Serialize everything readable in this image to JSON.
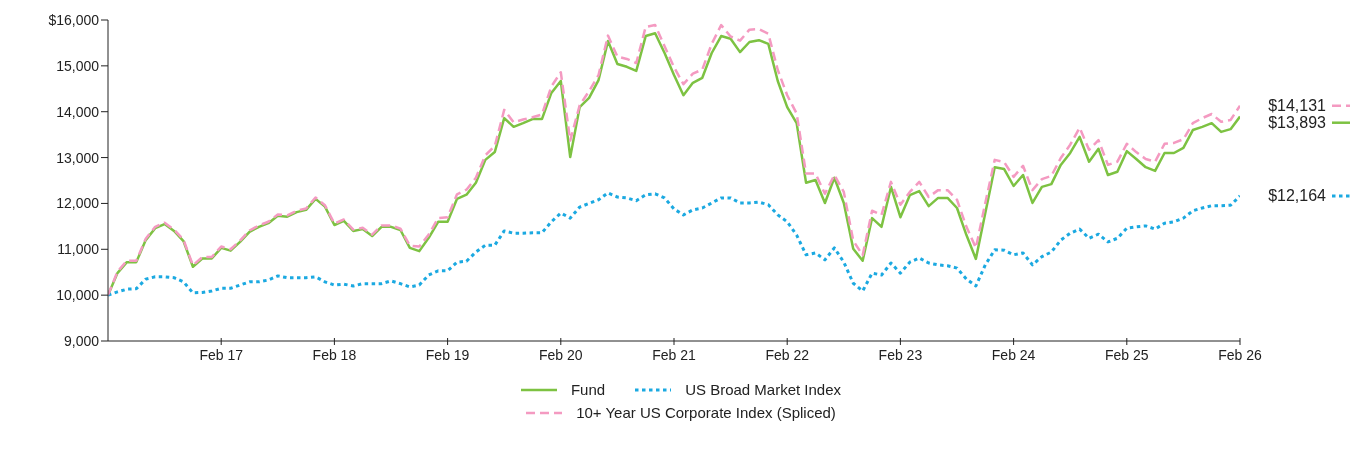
{
  "chart_data": {
    "type": "line",
    "x": [
      "2016-02",
      "2016-03",
      "2016-04",
      "2016-05",
      "2016-06",
      "2016-07",
      "2016-08",
      "2016-09",
      "2016-10",
      "2016-11",
      "2016-12",
      "2017-01",
      "2017-02",
      "2017-03",
      "2017-04",
      "2017-05",
      "2017-06",
      "2017-07",
      "2017-08",
      "2017-09",
      "2017-10",
      "2017-11",
      "2017-12",
      "2018-01",
      "2018-02",
      "2018-03",
      "2018-04",
      "2018-05",
      "2018-06",
      "2018-07",
      "2018-08",
      "2018-09",
      "2018-10",
      "2018-11",
      "2018-12",
      "2019-01",
      "2019-02",
      "2019-03",
      "2019-04",
      "2019-05",
      "2019-06",
      "2019-07",
      "2019-08",
      "2019-09",
      "2019-10",
      "2019-11",
      "2019-12",
      "2020-01",
      "2020-02",
      "2020-03",
      "2020-04",
      "2020-05",
      "2020-06",
      "2020-07",
      "2020-08",
      "2020-09",
      "2020-10",
      "2020-11",
      "2020-12",
      "2021-01",
      "2021-02",
      "2021-03",
      "2021-04",
      "2021-05",
      "2021-06",
      "2021-07",
      "2021-08",
      "2021-09",
      "2021-10",
      "2021-11",
      "2021-12",
      "2022-01",
      "2022-02",
      "2022-03",
      "2022-04",
      "2022-05",
      "2022-06",
      "2022-07",
      "2022-08",
      "2022-09",
      "2022-10",
      "2022-11",
      "2022-12",
      "2023-01",
      "2023-02",
      "2023-03",
      "2023-04",
      "2023-05",
      "2023-06",
      "2023-07",
      "2023-08",
      "2023-09",
      "2023-10",
      "2023-11",
      "2023-12",
      "2024-01",
      "2024-02",
      "2024-03",
      "2024-04",
      "2024-05",
      "2024-06",
      "2024-07",
      "2024-08",
      "2024-09",
      "2024-10",
      "2024-11",
      "2024-12",
      "2025-01",
      "2025-02",
      "2025-03",
      "2025-04",
      "2025-05",
      "2025-06",
      "2025-07",
      "2025-08",
      "2025-09",
      "2025-10",
      "2025-11",
      "2025-12",
      "2026-01",
      "2026-02"
    ],
    "series": [
      {
        "name": "Fund",
        "color": "#7dc242",
        "line_style": "solid",
        "value_labels": [
          null,
          null,
          null,
          null,
          null,
          null,
          null,
          null,
          null,
          null,
          null,
          null,
          null,
          null,
          null,
          null,
          null,
          null,
          null,
          null,
          null,
          null,
          null,
          null,
          null,
          null,
          null,
          null,
          null,
          null,
          null,
          null,
          null,
          null,
          null,
          null,
          null,
          null,
          null,
          null,
          null,
          null,
          null,
          null,
          null,
          null,
          null,
          null,
          null,
          null,
          null,
          null,
          null,
          null,
          null,
          null,
          null,
          null,
          null,
          null,
          null,
          null,
          null,
          null,
          null,
          null,
          null,
          null,
          null,
          null,
          null,
          null,
          null,
          null,
          null,
          null,
          null,
          null,
          null,
          null,
          null,
          null,
          null,
          null,
          null,
          null,
          null,
          null,
          null,
          null,
          null,
          null,
          null,
          null,
          null,
          null,
          null,
          null,
          null,
          null,
          null,
          null,
          null,
          null,
          null,
          null,
          null,
          null,
          null,
          null,
          null,
          null,
          null,
          null,
          null,
          null,
          null,
          null,
          null,
          null,
          "$13,893"
        ],
        "values": [
          10000,
          10480,
          10720,
          10720,
          11200,
          11460,
          11550,
          11400,
          11180,
          10620,
          10800,
          10800,
          11030,
          10970,
          11160,
          11380,
          11490,
          11570,
          11730,
          11710,
          11810,
          11860,
          12100,
          11930,
          11530,
          11620,
          11400,
          11440,
          11290,
          11490,
          11490,
          11420,
          11030,
          10960,
          11250,
          11600,
          11600,
          12100,
          12190,
          12450,
          12950,
          13120,
          13860,
          13670,
          13750,
          13840,
          13840,
          14410,
          14670,
          13010,
          14100,
          14300,
          14690,
          15540,
          15040,
          14980,
          14890,
          15650,
          15710,
          15280,
          14800,
          14360,
          14630,
          14740,
          15280,
          15650,
          15590,
          15300,
          15520,
          15560,
          15480,
          14670,
          14100,
          13750,
          12450,
          12510,
          12010,
          12560,
          12010,
          11010,
          10750,
          11680,
          11490,
          12360,
          11700,
          12180,
          12270,
          11940,
          12120,
          12120,
          11900,
          11310,
          10790,
          11790,
          12790,
          12750,
          12380,
          12620,
          12010,
          12360,
          12420,
          12840,
          13100,
          13450,
          12910,
          13190,
          12620,
          12690,
          13140,
          12970,
          12790,
          12710,
          13100,
          13100,
          13210,
          13600,
          13670,
          13750,
          13560,
          13620,
          13893
        ]
      },
      {
        "name": "US Broad Market Index",
        "color": "#1ba9e1",
        "line_style": "dotted",
        "value_labels": [
          null,
          null,
          null,
          null,
          null,
          null,
          null,
          null,
          null,
          null,
          null,
          null,
          null,
          null,
          null,
          null,
          null,
          null,
          null,
          null,
          null,
          null,
          null,
          null,
          null,
          null,
          null,
          null,
          null,
          null,
          null,
          null,
          null,
          null,
          null,
          null,
          null,
          null,
          null,
          null,
          null,
          null,
          null,
          null,
          null,
          null,
          null,
          null,
          null,
          null,
          null,
          null,
          null,
          null,
          null,
          null,
          null,
          null,
          null,
          null,
          null,
          null,
          null,
          null,
          null,
          null,
          null,
          null,
          null,
          null,
          null,
          null,
          null,
          null,
          null,
          null,
          null,
          null,
          null,
          null,
          null,
          null,
          null,
          null,
          null,
          null,
          null,
          null,
          null,
          null,
          null,
          null,
          null,
          null,
          null,
          null,
          null,
          null,
          null,
          null,
          null,
          null,
          null,
          null,
          null,
          null,
          null,
          null,
          null,
          null,
          null,
          null,
          null,
          null,
          null,
          null,
          null,
          null,
          null,
          null,
          "$12,164"
        ],
        "values": [
          10000,
          10070,
          10130,
          10140,
          10350,
          10400,
          10400,
          10380,
          10290,
          10050,
          10060,
          10090,
          10150,
          10150,
          10220,
          10290,
          10290,
          10330,
          10420,
          10380,
          10380,
          10380,
          10400,
          10290,
          10220,
          10240,
          10200,
          10250,
          10250,
          10250,
          10310,
          10250,
          10180,
          10220,
          10440,
          10530,
          10530,
          10720,
          10740,
          10940,
          11090,
          11090,
          11400,
          11350,
          11350,
          11360,
          11360,
          11600,
          11790,
          11680,
          11920,
          12000,
          12080,
          12230,
          12140,
          12120,
          12060,
          12190,
          12210,
          12120,
          11880,
          11750,
          11860,
          11900,
          12010,
          12120,
          12120,
          12010,
          12010,
          12030,
          11970,
          11750,
          11600,
          11310,
          10880,
          10920,
          10770,
          11030,
          10720,
          10260,
          10090,
          10480,
          10440,
          10700,
          10480,
          10720,
          10810,
          10700,
          10660,
          10640,
          10590,
          10350,
          10200,
          10660,
          10990,
          10980,
          10880,
          10920,
          10660,
          10840,
          10940,
          11200,
          11350,
          11440,
          11240,
          11330,
          11160,
          11240,
          11460,
          11490,
          11510,
          11440,
          11570,
          11600,
          11680,
          11840,
          11900,
          11950,
          11950,
          11960,
          12164
        ]
      },
      {
        "name": "10+ Year US Corporate Index (Spliced)",
        "color": "#f49ac1",
        "line_style": "dashed",
        "value_labels": [
          null,
          null,
          null,
          null,
          null,
          null,
          null,
          null,
          null,
          null,
          null,
          null,
          null,
          null,
          null,
          null,
          null,
          null,
          null,
          null,
          null,
          null,
          null,
          null,
          null,
          null,
          null,
          null,
          null,
          null,
          null,
          null,
          null,
          null,
          null,
          null,
          null,
          null,
          null,
          null,
          null,
          null,
          null,
          null,
          null,
          null,
          null,
          null,
          null,
          null,
          null,
          null,
          null,
          null,
          null,
          null,
          null,
          null,
          null,
          null,
          null,
          null,
          null,
          null,
          null,
          null,
          null,
          null,
          null,
          null,
          null,
          null,
          null,
          null,
          null,
          null,
          null,
          null,
          null,
          null,
          null,
          null,
          null,
          null,
          null,
          null,
          null,
          null,
          null,
          null,
          null,
          null,
          null,
          null,
          null,
          null,
          null,
          null,
          null,
          null,
          null,
          null,
          null,
          null,
          null,
          null,
          null,
          null,
          null,
          null,
          null,
          null,
          null,
          null,
          null,
          null,
          null,
          null,
          null,
          null,
          "$14,131"
        ],
        "values": [
          10000,
          10510,
          10750,
          10750,
          11230,
          11490,
          11580,
          11430,
          11210,
          10650,
          10830,
          10830,
          11060,
          11000,
          11190,
          11410,
          11520,
          11600,
          11760,
          11740,
          11840,
          11890,
          12130,
          11960,
          11560,
          11650,
          11430,
          11470,
          11320,
          11520,
          11520,
          11450,
          11080,
          11060,
          11320,
          11680,
          11700,
          12200,
          12300,
          12560,
          13050,
          13250,
          14040,
          13770,
          13830,
          13880,
          13940,
          14550,
          14860,
          13370,
          14140,
          14450,
          14800,
          15660,
          15200,
          15150,
          15060,
          15850,
          15890,
          15430,
          14970,
          14600,
          14830,
          14920,
          15480,
          15890,
          15640,
          15550,
          15790,
          15800,
          15700,
          14910,
          14360,
          13960,
          12650,
          12650,
          12210,
          12620,
          12250,
          11190,
          10870,
          11840,
          11750,
          12470,
          11970,
          12250,
          12470,
          12140,
          12290,
          12290,
          12080,
          11490,
          11030,
          12010,
          12950,
          12900,
          12580,
          12820,
          12290,
          12530,
          12600,
          12990,
          13280,
          13650,
          13170,
          13380,
          12840,
          12910,
          13300,
          13120,
          12970,
          12910,
          13300,
          13320,
          13400,
          13750,
          13860,
          13950,
          13780,
          13820,
          14131
        ]
      }
    ],
    "xlim": [
      "2016-02",
      "2026-02"
    ],
    "xticks": [
      {
        "value": "2017-02",
        "label": "Feb 17"
      },
      {
        "value": "2018-02",
        "label": "Feb 18"
      },
      {
        "value": "2019-02",
        "label": "Feb 19"
      },
      {
        "value": "2020-02",
        "label": "Feb 20"
      },
      {
        "value": "2021-02",
        "label": "Feb 21"
      },
      {
        "value": "2022-02",
        "label": "Feb 22"
      },
      {
        "value": "2023-02",
        "label": "Feb 23"
      },
      {
        "value": "2024-02",
        "label": "Feb 24"
      },
      {
        "value": "2025-02",
        "label": "Feb 25"
      },
      {
        "value": "2026-02",
        "label": "Feb 26"
      }
    ],
    "ylim": [
      9000,
      16000
    ],
    "yticks": [
      {
        "value": 9000,
        "label": "9,000"
      },
      {
        "value": 10000,
        "label": "10,000"
      },
      {
        "value": 11000,
        "label": "11,000"
      },
      {
        "value": 12000,
        "label": "12,000"
      },
      {
        "value": 13000,
        "label": "13,000"
      },
      {
        "value": 14000,
        "label": "14,000"
      },
      {
        "value": 15000,
        "label": "15,000"
      },
      {
        "value": 16000,
        "label": "$16,000"
      }
    ],
    "grid": false,
    "legend": "bottom",
    "marker": "none"
  }
}
